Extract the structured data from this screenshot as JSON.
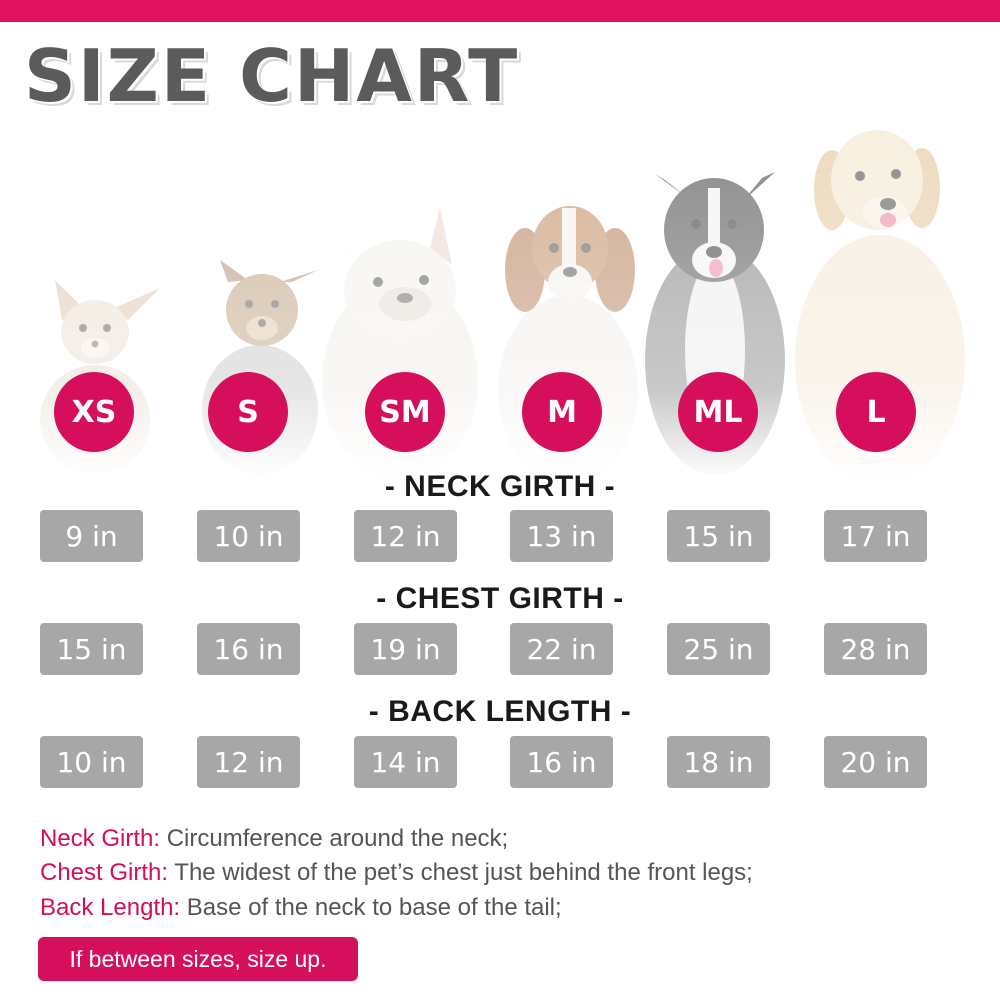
{
  "title": "SIZE CHART",
  "colors": {
    "accent": "#e0115f",
    "value_box": "#a7a7a7",
    "title": "#5b5b5b"
  },
  "dogs": [
    "chihuahua",
    "yorkshire-terrier",
    "french-bulldog",
    "beagle",
    "border-collie",
    "golden-retriever"
  ],
  "sizes": [
    "XS",
    "S",
    "SM",
    "M",
    "ML",
    "L"
  ],
  "sections": [
    {
      "heading": "- NECK GIRTH -",
      "values": [
        "9 in",
        "10 in",
        "12 in",
        "13 in",
        "15 in",
        "17 in"
      ]
    },
    {
      "heading": "- CHEST GIRTH -",
      "values": [
        "15 in",
        "16 in",
        "19 in",
        "22 in",
        "25 in",
        "28 in"
      ]
    },
    {
      "heading": "- BACK LENGTH -",
      "values": [
        "10 in",
        "12 in",
        "14 in",
        "16 in",
        "18 in",
        "20 in"
      ]
    }
  ],
  "legend": [
    {
      "term": "Neck Girth:",
      "desc": " Circumference around the neck;"
    },
    {
      "term": "Chest Girth:",
      "desc": " The widest of the pet’s chest just behind the front legs;"
    },
    {
      "term": "Back Length:",
      "desc": " Base of the neck to base of the tail;"
    }
  ],
  "tip": "If between sizes, size up."
}
